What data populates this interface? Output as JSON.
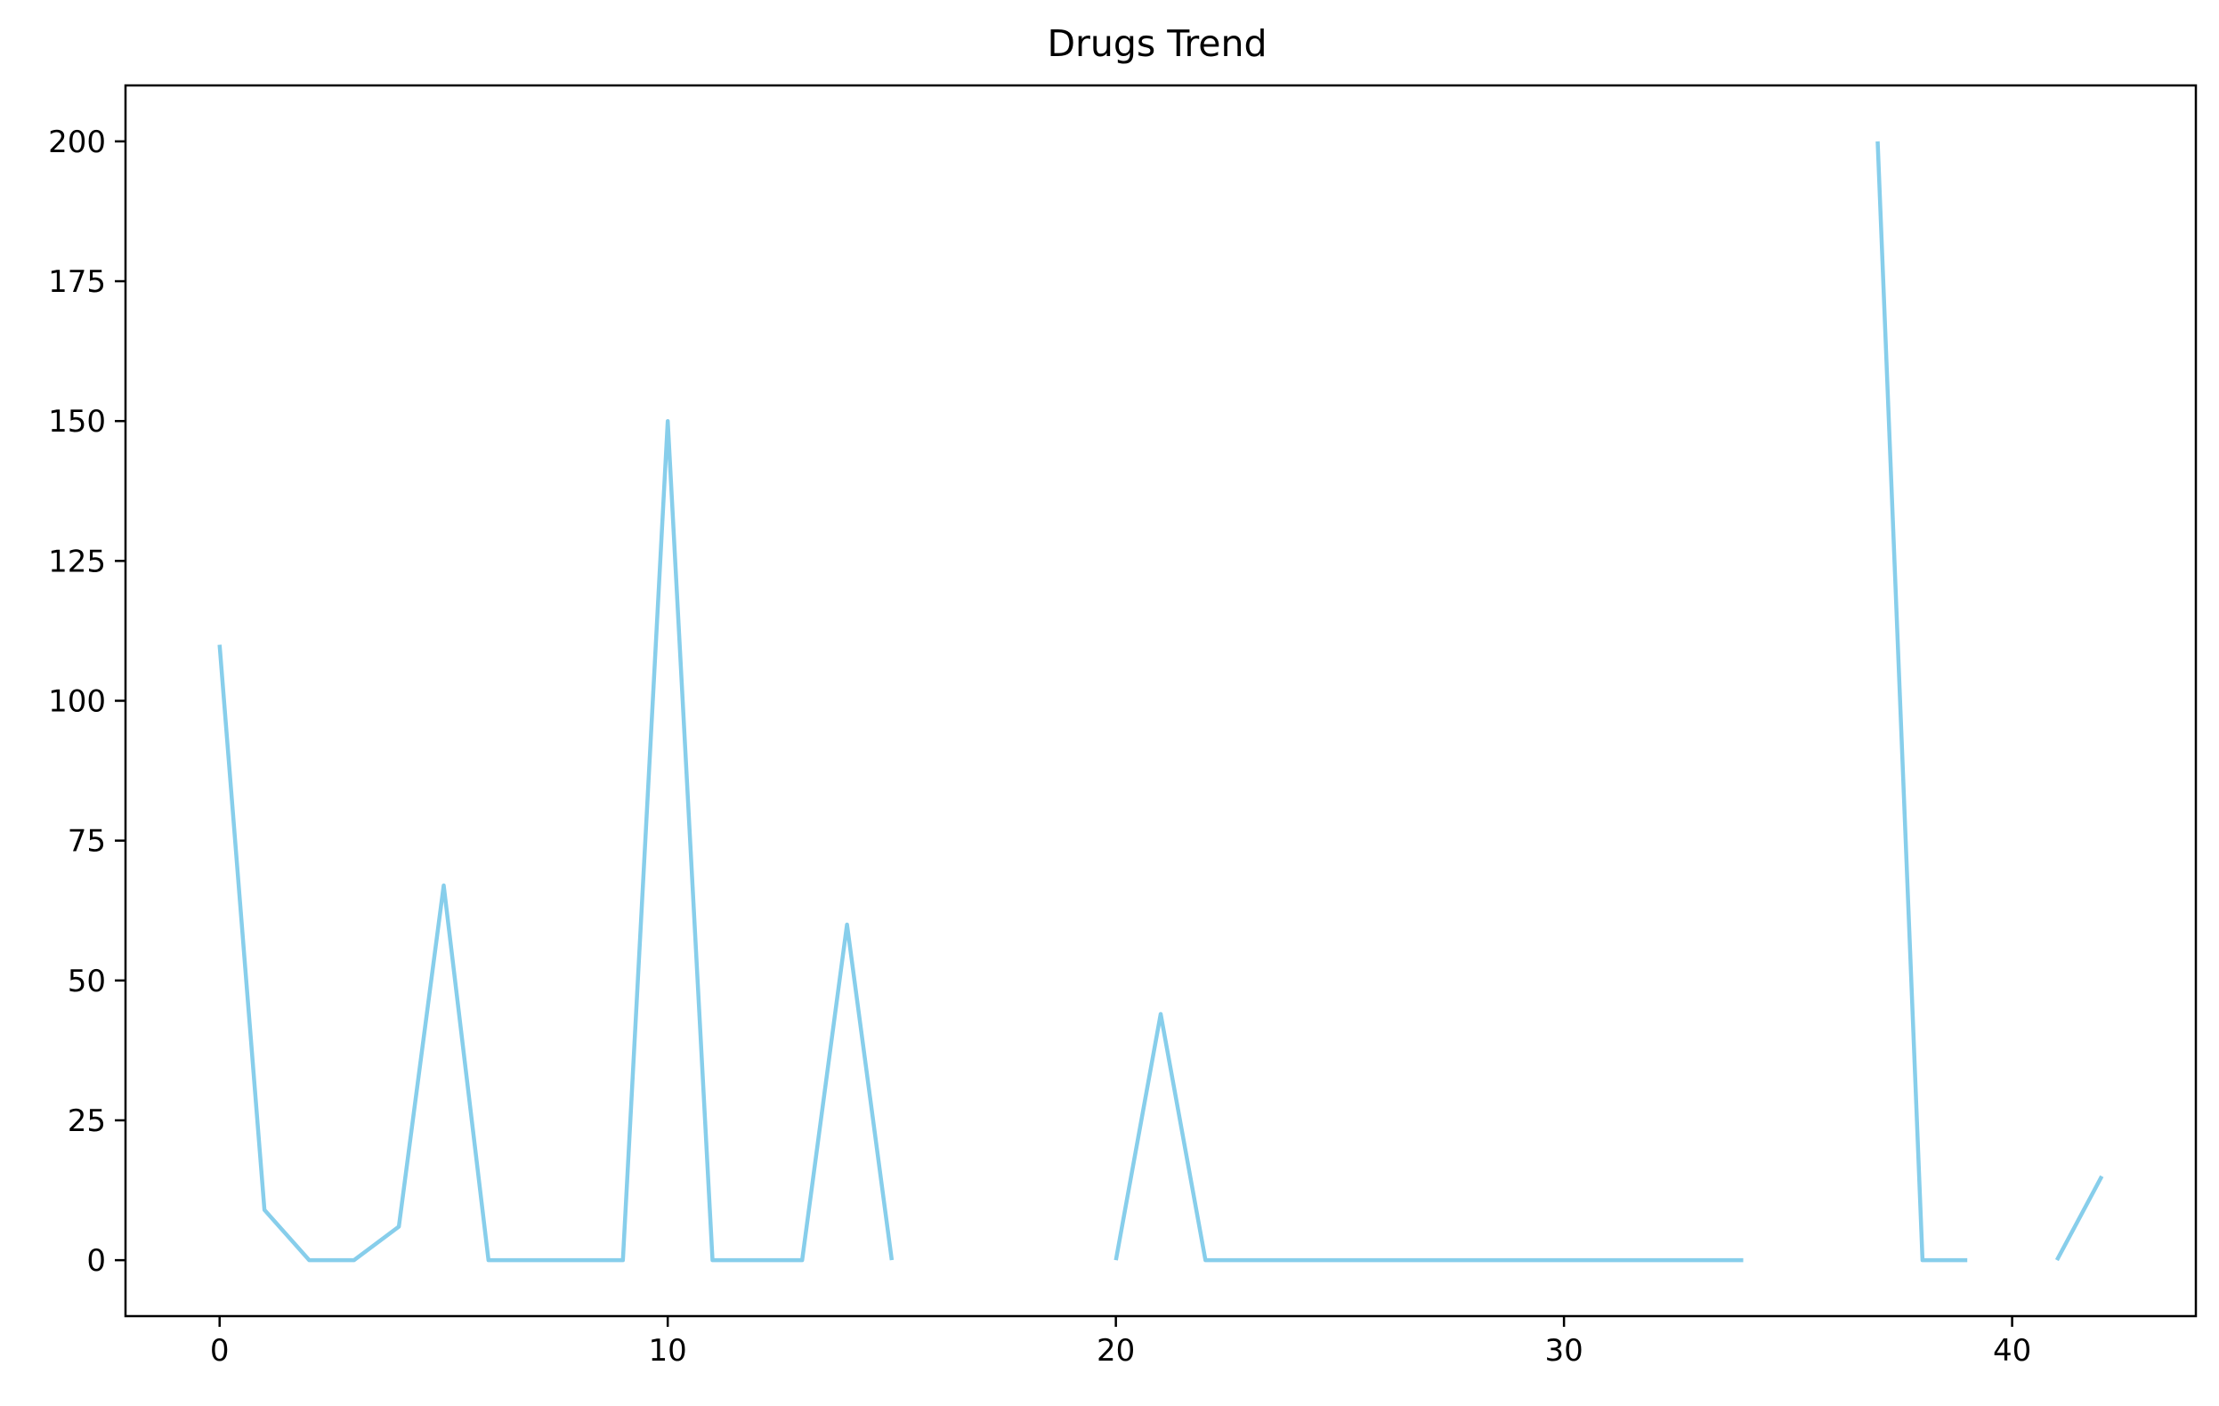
{
  "chart_data": {
    "type": "line",
    "title": "Drugs Trend",
    "xlabel": "",
    "ylabel": "",
    "xlim": [
      -2.1,
      44.1
    ],
    "ylim": [
      -10,
      210
    ],
    "xticks": [
      0,
      10,
      20,
      30,
      40
    ],
    "yticks": [
      0,
      25,
      50,
      75,
      100,
      125,
      150,
      175,
      200
    ],
    "grid": false,
    "legend": "none",
    "series": [
      {
        "color": "#87ceeb",
        "x": [
          0,
          1,
          2,
          3,
          4,
          5,
          6,
          7,
          8,
          9,
          10,
          11,
          12,
          13,
          14,
          15,
          16,
          17,
          18,
          19,
          20,
          21,
          22,
          23,
          24,
          25,
          26,
          27,
          28,
          29,
          30,
          31,
          32,
          33,
          34,
          35,
          36,
          37,
          38,
          39,
          40,
          41,
          42
        ],
        "y": [
          110,
          9,
          0,
          0,
          6,
          67,
          0,
          0,
          0,
          0,
          150,
          0,
          0,
          0,
          60,
          0,
          null,
          null,
          null,
          null,
          0,
          44,
          0,
          0,
          0,
          0,
          0,
          0,
          0,
          0,
          0,
          0,
          0,
          0,
          0,
          null,
          null,
          200,
          0,
          0,
          null,
          0,
          15
        ]
      }
    ]
  }
}
